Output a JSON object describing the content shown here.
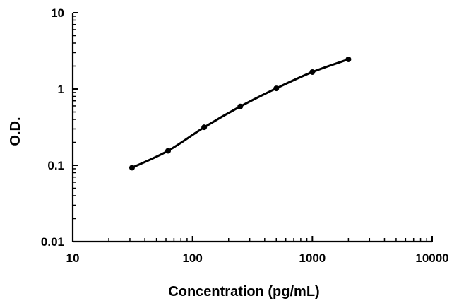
{
  "chart_data": {
    "type": "line",
    "title": "",
    "xlabel": "Concentration (pg/mL)",
    "ylabel": "O.D.",
    "xscale": "log",
    "yscale": "log",
    "xlim": [
      10,
      10000
    ],
    "ylim": [
      0.01,
      10
    ],
    "xticks": [
      10,
      100,
      1000,
      10000
    ],
    "xtick_labels": [
      "10",
      "100",
      "1000",
      "10000"
    ],
    "yticks": [
      0.01,
      0.1,
      1,
      10
    ],
    "ytick_labels": [
      "0.01",
      "0.1",
      "1",
      "10"
    ],
    "grid": false,
    "legend": "none",
    "series": [
      {
        "x": [
          31.25,
          62.5,
          125,
          250,
          500,
          1000,
          2000
        ],
        "y": [
          0.093,
          0.155,
          0.315,
          0.59,
          1.02,
          1.67,
          2.45
        ],
        "marker": "circle",
        "line": "smooth",
        "color": "#000000"
      }
    ]
  }
}
